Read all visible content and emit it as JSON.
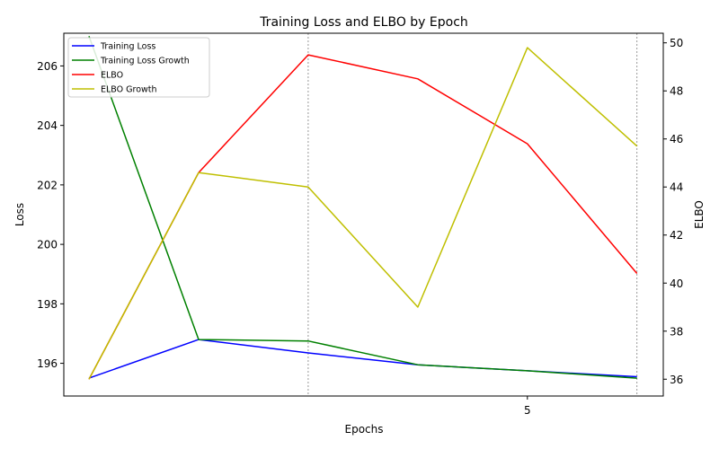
{
  "chart_data": {
    "type": "line",
    "title": "Training Loss and ELBO by Epoch",
    "xlabel": "Epochs",
    "ylabel_left": "Loss",
    "ylabel_right": "ELBO",
    "x": [
      1,
      2,
      3,
      4,
      5,
      6
    ],
    "xticks": [
      5
    ],
    "xlim": [
      0.77,
      6.24
    ],
    "ylim_left": [
      194.9,
      207.1
    ],
    "yticks_left": [
      196,
      198,
      200,
      202,
      204,
      206
    ],
    "ylim_right": [
      35.3,
      50.4
    ],
    "yticks_right": [
      36,
      38,
      40,
      42,
      44,
      46,
      48,
      50
    ],
    "vlines": [
      3,
      6
    ],
    "legend_position": "upper left",
    "series": [
      {
        "name": "Training Loss",
        "axis": "left",
        "color": "#0000ff",
        "values": [
          195.5,
          196.8,
          196.35,
          195.95,
          195.75,
          195.55
        ]
      },
      {
        "name": "Training Loss Growth",
        "axis": "left",
        "color": "#008000",
        "values": [
          207.0,
          196.8,
          196.75,
          195.95,
          195.75,
          195.5
        ]
      },
      {
        "name": "ELBO",
        "axis": "right",
        "color": "#ff0000",
        "values": [
          36.0,
          44.6,
          49.5,
          48.5,
          45.8,
          40.4
        ]
      },
      {
        "name": "ELBO Growth",
        "axis": "right",
        "color": "#bfbf00",
        "values": [
          36.0,
          44.6,
          44.0,
          39.0,
          49.8,
          45.7
        ]
      }
    ]
  }
}
